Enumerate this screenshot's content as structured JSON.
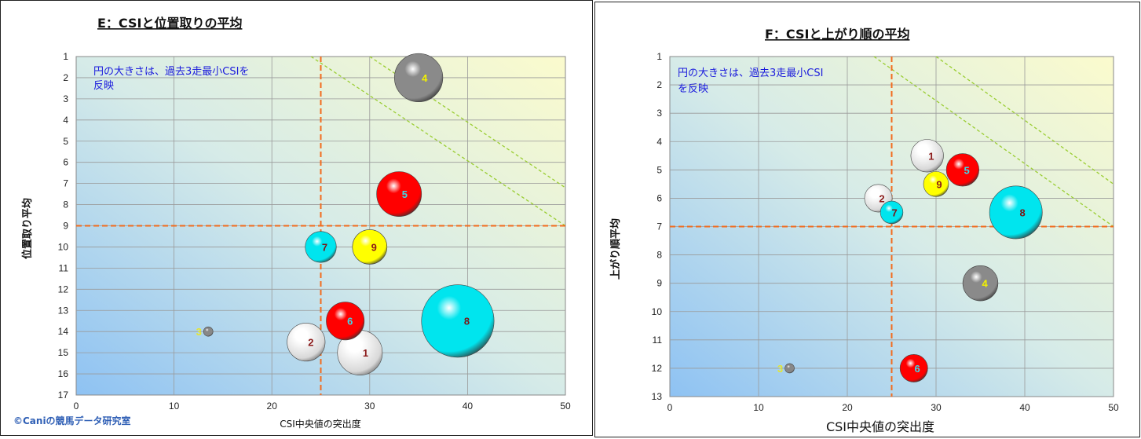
{
  "chart_data": [
    {
      "type": "scatter",
      "title": "E：CSIと位置取りの平均",
      "xlabel": "CSI中央値の突出度",
      "ylabel": "位置取り平均",
      "xlim": [
        0,
        50
      ],
      "ylim": [
        17,
        1
      ],
      "x_ticks": [
        "0",
        "10",
        "20",
        "30",
        "40",
        "50"
      ],
      "y_ticks": [
        "1",
        "2",
        "3",
        "4",
        "5",
        "6",
        "7",
        "8",
        "9",
        "10",
        "11",
        "12",
        "13",
        "14",
        "15",
        "16",
        "17"
      ],
      "grid": true,
      "note_lines": [
        "円の大きさは、過去3走最小CSIを",
        "反映"
      ],
      "credit": "©Caniの競馬データ研究室",
      "ref_x": 25,
      "ref_y": 9,
      "diag_lines": [
        [
          [
            24,
            1
          ],
          [
            50,
            9
          ]
        ],
        [
          [
            30,
            1
          ],
          [
            50,
            7.2
          ]
        ]
      ],
      "points": [
        {
          "label": "1",
          "x": 29,
          "y": 15,
          "size": 13,
          "color": "#ffffff",
          "label_color": "#8b1a1a"
        },
        {
          "label": "2",
          "x": 23.5,
          "y": 14.5,
          "size": 11,
          "color": "#ffffff",
          "label_color": "#8b1a1a"
        },
        {
          "label": "3",
          "x": 13.5,
          "y": 14,
          "size": 2,
          "color": "#888888",
          "label_color": "#e6e62e"
        },
        {
          "label": "4",
          "x": 35,
          "y": 2,
          "size": 14,
          "color": "#8a8a8a",
          "label_color": "#f2f200"
        },
        {
          "label": "5",
          "x": 33,
          "y": 7.5,
          "size": 13,
          "color": "#ff0000",
          "label_color": "#3fd9e8"
        },
        {
          "label": "6",
          "x": 27.5,
          "y": 13.5,
          "size": 11,
          "color": "#ff0000",
          "label_color": "#3fd9e8"
        },
        {
          "label": "7",
          "x": 25,
          "y": 10,
          "size": 9,
          "color": "#00e5ee",
          "label_color": "#7a1515"
        },
        {
          "label": "8",
          "x": 39,
          "y": 13.5,
          "size": 21,
          "color": "#00e5ee",
          "label_color": "#7a1515"
        },
        {
          "label": "9",
          "x": 30,
          "y": 10,
          "size": 10,
          "color": "#ffff00",
          "label_color": "#8b1a1a"
        }
      ]
    },
    {
      "type": "scatter",
      "title": "F：CSIと上がり順の平均",
      "xlabel": "CSI中央値の突出度",
      "ylabel": "上がり順平均",
      "xlim": [
        0,
        50
      ],
      "ylim": [
        13,
        1
      ],
      "x_ticks": [
        "0",
        "10",
        "20",
        "30",
        "40",
        "50"
      ],
      "y_ticks": [
        "1",
        "2",
        "3",
        "4",
        "5",
        "6",
        "7",
        "8",
        "9",
        "10",
        "11",
        "12",
        "13"
      ],
      "grid": true,
      "note_lines": [
        "円の大きさは、過去3走最小CSI",
        "を反映"
      ],
      "ref_x": 25,
      "ref_y": 7,
      "diag_lines": [
        [
          [
            23,
            1
          ],
          [
            50,
            7
          ]
        ],
        [
          [
            30,
            1
          ],
          [
            50,
            5.5
          ]
        ]
      ],
      "points": [
        {
          "label": "1",
          "x": 29,
          "y": 4.5,
          "size": 13,
          "color": "#ffffff",
          "label_color": "#8b1a1a"
        },
        {
          "label": "2",
          "x": 23.5,
          "y": 6,
          "size": 11,
          "color": "#ffffff",
          "label_color": "#8b1a1a"
        },
        {
          "label": "3",
          "x": 13.5,
          "y": 12,
          "size": 2,
          "color": "#888888",
          "label_color": "#e6e62e"
        },
        {
          "label": "4",
          "x": 35,
          "y": 9,
          "size": 14,
          "color": "#8a8a8a",
          "label_color": "#f2f200"
        },
        {
          "label": "5",
          "x": 33,
          "y": 5,
          "size": 13,
          "color": "#ff0000",
          "label_color": "#3fd9e8"
        },
        {
          "label": "6",
          "x": 27.5,
          "y": 12,
          "size": 11,
          "color": "#ff0000",
          "label_color": "#3fd9e8"
        },
        {
          "label": "7",
          "x": 25,
          "y": 6.5,
          "size": 9,
          "color": "#00e5ee",
          "label_color": "#7a1515"
        },
        {
          "label": "8",
          "x": 39,
          "y": 6.5,
          "size": 21,
          "color": "#00e5ee",
          "label_color": "#7a1515"
        },
        {
          "label": "9",
          "x": 30,
          "y": 5.5,
          "size": 10,
          "color": "#ffff00",
          "label_color": "#8b1a1a"
        }
      ]
    }
  ]
}
